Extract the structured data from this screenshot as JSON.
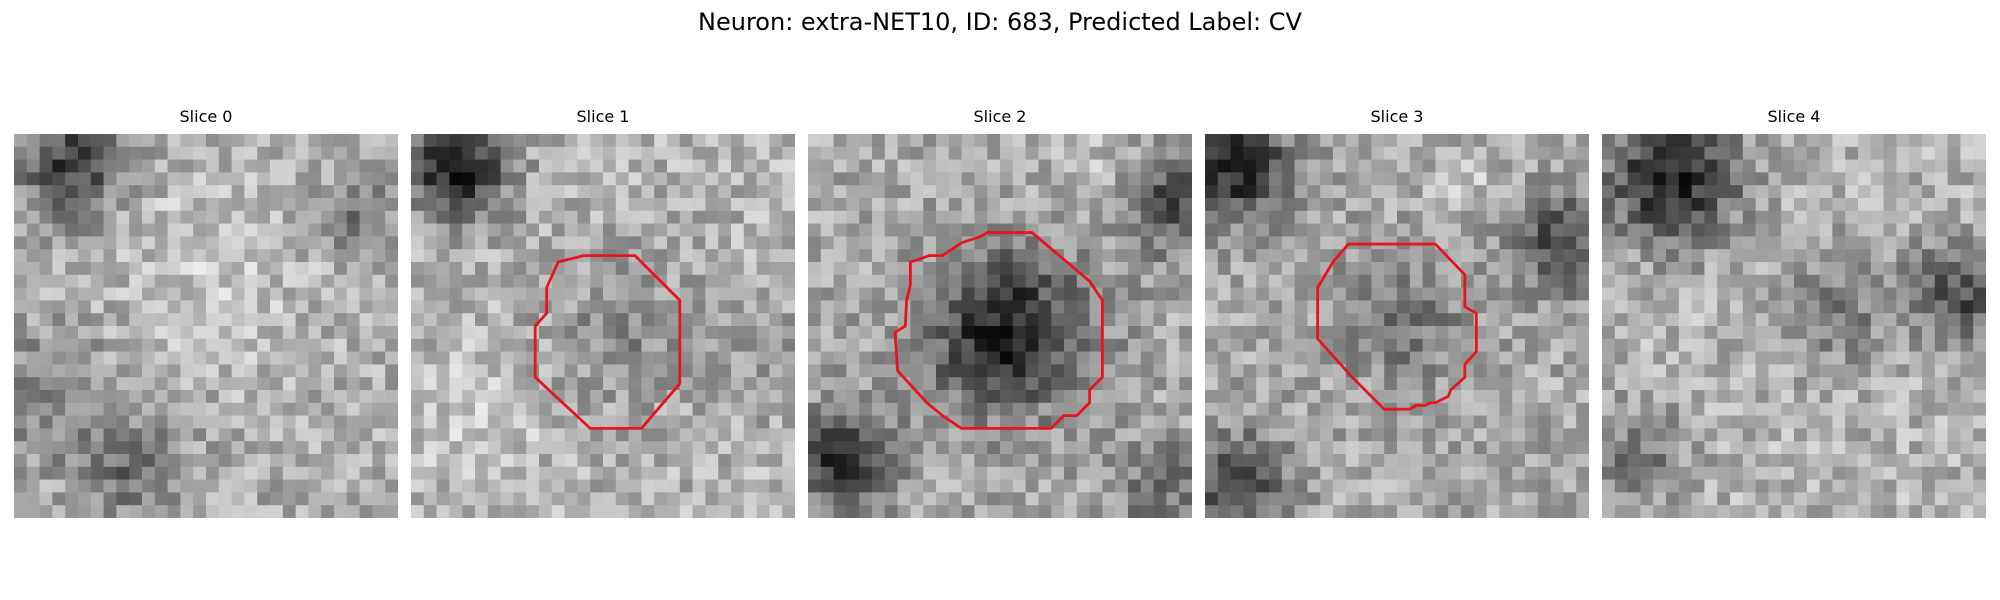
{
  "figure": {
    "title": "Neuron: extra-NET10, ID: 683, Predicted Label: CV"
  },
  "panels": [
    {
      "title": "Slice 0",
      "contour": "none"
    },
    {
      "title": "Slice 1",
      "contour": "octagon-medium"
    },
    {
      "title": "Slice 2",
      "contour": "large-irregular"
    },
    {
      "title": "Slice 3",
      "contour": "octagon-irregular"
    },
    {
      "title": "Slice 4",
      "contour": "none"
    }
  ],
  "colors": {
    "contour": "#e8141c",
    "background": "#ffffff"
  }
}
